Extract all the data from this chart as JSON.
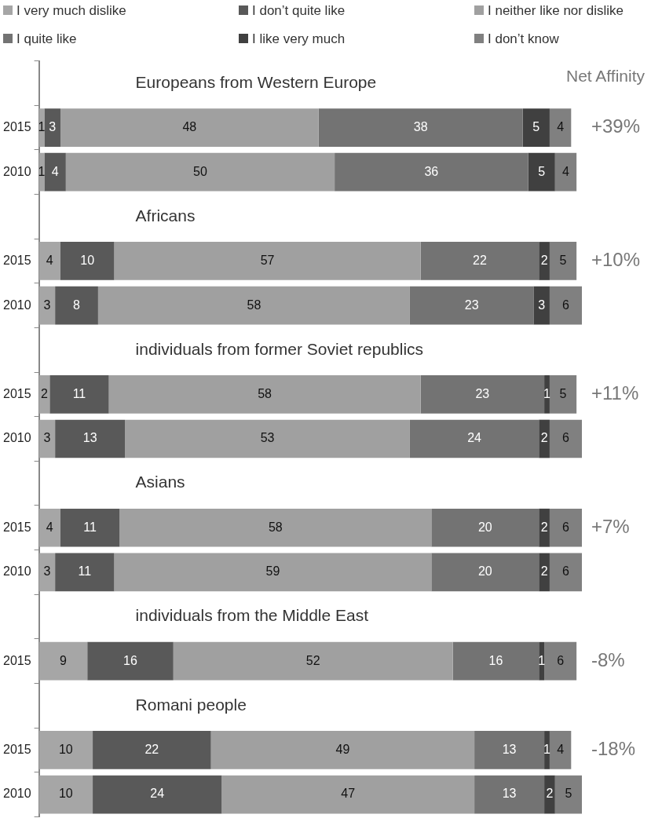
{
  "chart_data": {
    "type": "bar",
    "orientation": "horizontal",
    "stacked": true,
    "data_labels": true,
    "legend": "top",
    "grid": false,
    "y2label": "Net Affinity",
    "categories": [
      "Europeans from Western Europe",
      "2015",
      "2010",
      "Africans",
      "2015",
      "2010",
      "individuals from former Soviet republics",
      "2015",
      "2010",
      "Asians",
      "2015",
      "2010",
      "individuals from the Middle East",
      "2015",
      "Romani people",
      "2015",
      "2010"
    ],
    "series": [
      {
        "name": "I very much dislike",
        "color": "#a6a6a6",
        "values": [
          null,
          1,
          1,
          null,
          4,
          3,
          null,
          2,
          3,
          null,
          4,
          3,
          null,
          9,
          null,
          10,
          10
        ]
      },
      {
        "name": "I don’t quite like",
        "color": "#595959",
        "values": [
          null,
          3,
          4,
          null,
          10,
          8,
          null,
          11,
          13,
          null,
          11,
          11,
          null,
          16,
          null,
          22,
          24
        ]
      },
      {
        "name": "I neither like nor dislike",
        "color": "#a0a0a0",
        "values": [
          null,
          48,
          50,
          null,
          57,
          58,
          null,
          58,
          53,
          null,
          58,
          59,
          null,
          52,
          null,
          49,
          47
        ]
      },
      {
        "name": "I quite like",
        "color": "#737373",
        "values": [
          null,
          38,
          36,
          null,
          22,
          23,
          null,
          23,
          24,
          null,
          20,
          20,
          null,
          16,
          null,
          13,
          13
        ]
      },
      {
        "name": "I like very much",
        "color": "#404040",
        "values": [
          null,
          5,
          5,
          null,
          2,
          3,
          null,
          1,
          2,
          null,
          2,
          2,
          null,
          1,
          null,
          1,
          2
        ]
      },
      {
        "name": "I don’t know",
        "color": "#808080",
        "values": [
          null,
          4,
          4,
          null,
          5,
          6,
          null,
          5,
          6,
          null,
          6,
          6,
          null,
          6,
          null,
          4,
          5
        ]
      }
    ],
    "annotations": [
      "+39%",
      "+10%",
      "+11%",
      "+7%",
      "-8%",
      "-18%"
    ]
  }
}
